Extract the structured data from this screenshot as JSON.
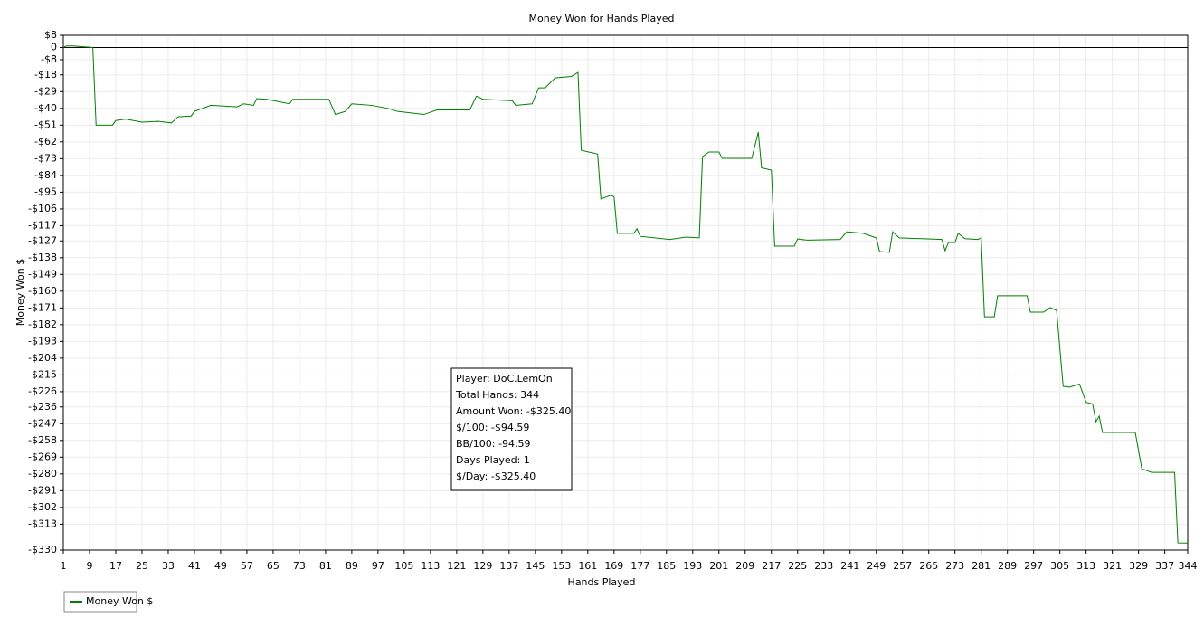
{
  "chart_data": {
    "type": "line",
    "title": "Money Won for Hands Played",
    "x_label": "Hands Played",
    "y_label": "Money Won $",
    "xlim": [
      1,
      344
    ],
    "ylim": [
      -330,
      8
    ],
    "xticks": [
      1,
      9,
      17,
      25,
      33,
      41,
      49,
      57,
      65,
      73,
      81,
      89,
      97,
      105,
      113,
      121,
      129,
      137,
      145,
      153,
      161,
      169,
      177,
      185,
      193,
      201,
      209,
      217,
      225,
      233,
      241,
      249,
      257,
      265,
      273,
      281,
      289,
      297,
      305,
      313,
      321,
      329,
      337,
      344
    ],
    "yticks": [
      {
        "value": 8,
        "label": "$8"
      },
      0,
      {
        "value": -8,
        "label": "-$8"
      },
      {
        "value": -18,
        "label": "-$18"
      },
      {
        "value": -29,
        "label": "-$29"
      },
      {
        "value": -40,
        "label": "-$40"
      },
      {
        "value": -51,
        "label": "-$51"
      },
      {
        "value": -62,
        "label": "-$62"
      },
      {
        "value": -73,
        "label": "-$73"
      },
      {
        "value": -84,
        "label": "-$84"
      },
      {
        "value": -95,
        "label": "-$95"
      },
      {
        "value": -106,
        "label": "-$106"
      },
      {
        "value": -117,
        "label": "-$117"
      },
      {
        "value": -127,
        "label": "-$127"
      },
      {
        "value": -138,
        "label": "-$138"
      },
      {
        "value": -149,
        "label": "-$149"
      },
      {
        "value": -160,
        "label": "-$160"
      },
      {
        "value": -171,
        "label": "-$171"
      },
      {
        "value": -182,
        "label": "-$182"
      },
      {
        "value": -193,
        "label": "-$193"
      },
      {
        "value": -204,
        "label": "-$204"
      },
      {
        "value": -215,
        "label": "-$215"
      },
      {
        "value": -226,
        "label": "-$226"
      },
      {
        "value": -236,
        "label": "-$236"
      },
      {
        "value": -247,
        "label": "-$247"
      },
      {
        "value": -258,
        "label": "-$258"
      },
      {
        "value": -269,
        "label": "-$269"
      },
      {
        "value": -280,
        "label": "-$280"
      },
      {
        "value": -291,
        "label": "-$291"
      },
      {
        "value": -302,
        "label": "-$302"
      },
      {
        "value": -313,
        "label": "-$313"
      },
      {
        "value": -330,
        "label": "-$330"
      }
    ],
    "grid": true,
    "legend": "bottom-left",
    "x": [
      1,
      2,
      4,
      10,
      11,
      16,
      17,
      20,
      25,
      30,
      34,
      36,
      40,
      41,
      46,
      54,
      56,
      59,
      60,
      63,
      70,
      71,
      82,
      84,
      87,
      89,
      95,
      100,
      103,
      111,
      115,
      125,
      127,
      129,
      138,
      139,
      144,
      146,
      148,
      151,
      156,
      158,
      159,
      162,
      164,
      165,
      168,
      169,
      170,
      175,
      176,
      177,
      186,
      191,
      195,
      196,
      198,
      201,
      202,
      211,
      213,
      214,
      217,
      218,
      224,
      225,
      228,
      238,
      240,
      245,
      249,
      250,
      253,
      254,
      256,
      269,
      270,
      271,
      273,
      274,
      276,
      280,
      281,
      282,
      285,
      286,
      295,
      296,
      300,
      302,
      304,
      306,
      308,
      311,
      313,
      315,
      316,
      317,
      318,
      328,
      330,
      333,
      340,
      341,
      344
    ],
    "series": [
      {
        "name": "Money Won $",
        "color": "#008000",
        "values": [
          0,
          1,
          1,
          0,
          -51,
          -51,
          -48,
          -47,
          -49,
          -48.5,
          -49.5,
          -45.5,
          -45,
          -42,
          -38,
          -39,
          -37,
          -38,
          -33.6,
          -34,
          -37,
          -34,
          -34,
          -44,
          -42,
          -37,
          -38,
          -40,
          -42,
          -44,
          -41,
          -41,
          -32,
          -34,
          -35,
          -38,
          -37,
          -26.5,
          -26.5,
          -20,
          -19,
          -16.4,
          -67.5,
          -69,
          -70,
          -99.5,
          -97,
          -98,
          -122,
          -122,
          -119,
          -124,
          -126,
          -124.5,
          -125,
          -71.6,
          -68.6,
          -68.6,
          -72.8,
          -72.8,
          -55.6,
          -79,
          -80.5,
          -130.4,
          -130.4,
          -125.7,
          -126.5,
          -126,
          -121,
          -122,
          -125,
          -134,
          -134.5,
          -121,
          -125,
          -126,
          -133.4,
          -128,
          -128,
          -122,
          -125.5,
          -126,
          -125,
          -176.8,
          -176.8,
          -163,
          -163,
          -173.8,
          -173.8,
          -170.8,
          -172.6,
          -222.5,
          -223,
          -221,
          -233,
          -234,
          -245.7,
          -242,
          -252.8,
          -252.8,
          -276.6,
          -279,
          -279,
          -325.3,
          -325.4
        ]
      }
    ],
    "annotation_lines": [
      "Player: DoC.LemOn",
      "Total Hands: 344",
      "Amount Won: -$325.40",
      "$/100: -$94.59",
      "BB/100: -94.59",
      "Days Played: 1",
      "$/Day: -$325.40"
    ]
  }
}
